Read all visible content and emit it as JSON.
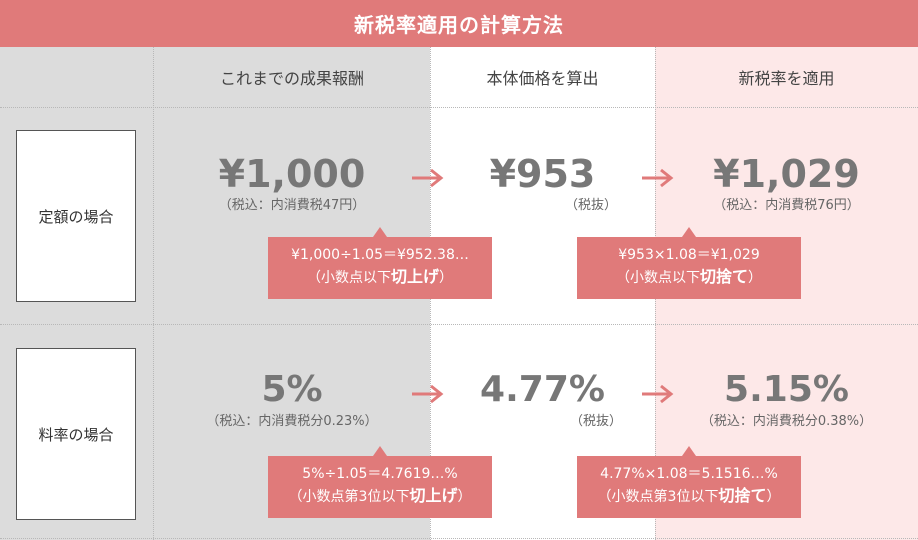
{
  "title": "新税率適用の計算方法",
  "headers": {
    "old": "これまでの成果報酬",
    "mid": "本体価格を算出",
    "new": "新税率を適用"
  },
  "rows": [
    {
      "label": "定額の場合",
      "old_value": "¥1,000",
      "old_note": "（税込：内消費税47円）",
      "mid_value": "¥953",
      "mid_note": "（税抜）",
      "new_value": "¥1,029",
      "new_note": "（税込：内消費税76円）",
      "calc1_line1": "¥1,000÷1.05＝¥952.38…",
      "calc1_prefix": "（小数点以下",
      "calc1_em": "切上げ",
      "calc1_suffix": "）",
      "calc2_line1": "¥953×1.08＝¥1,029",
      "calc2_prefix": "（小数点以下",
      "calc2_em": "切捨て",
      "calc2_suffix": "）"
    },
    {
      "label": "料率の場合",
      "old_value": "5%",
      "old_note": "（税込：内消費税分0.23%）",
      "mid_value": "4.77%",
      "mid_note": "（税抜）",
      "new_value": "5.15%",
      "new_note": "（税込：内消費税分0.38%）",
      "calc1_line1": "5%÷1.05＝4.7619…%",
      "calc1_prefix": "（小数点第3位以下",
      "calc1_em": "切上げ",
      "calc1_suffix": "）",
      "calc2_line1": "4.77%×1.08＝5.1516…%",
      "calc2_prefix": "（小数点第3位以下",
      "calc2_em": "切捨て",
      "calc2_suffix": "）"
    }
  ],
  "colors": {
    "accent": "#e07a7a",
    "gray_bg": "#dcdcdc",
    "pink_bg": "#fde8e8"
  }
}
